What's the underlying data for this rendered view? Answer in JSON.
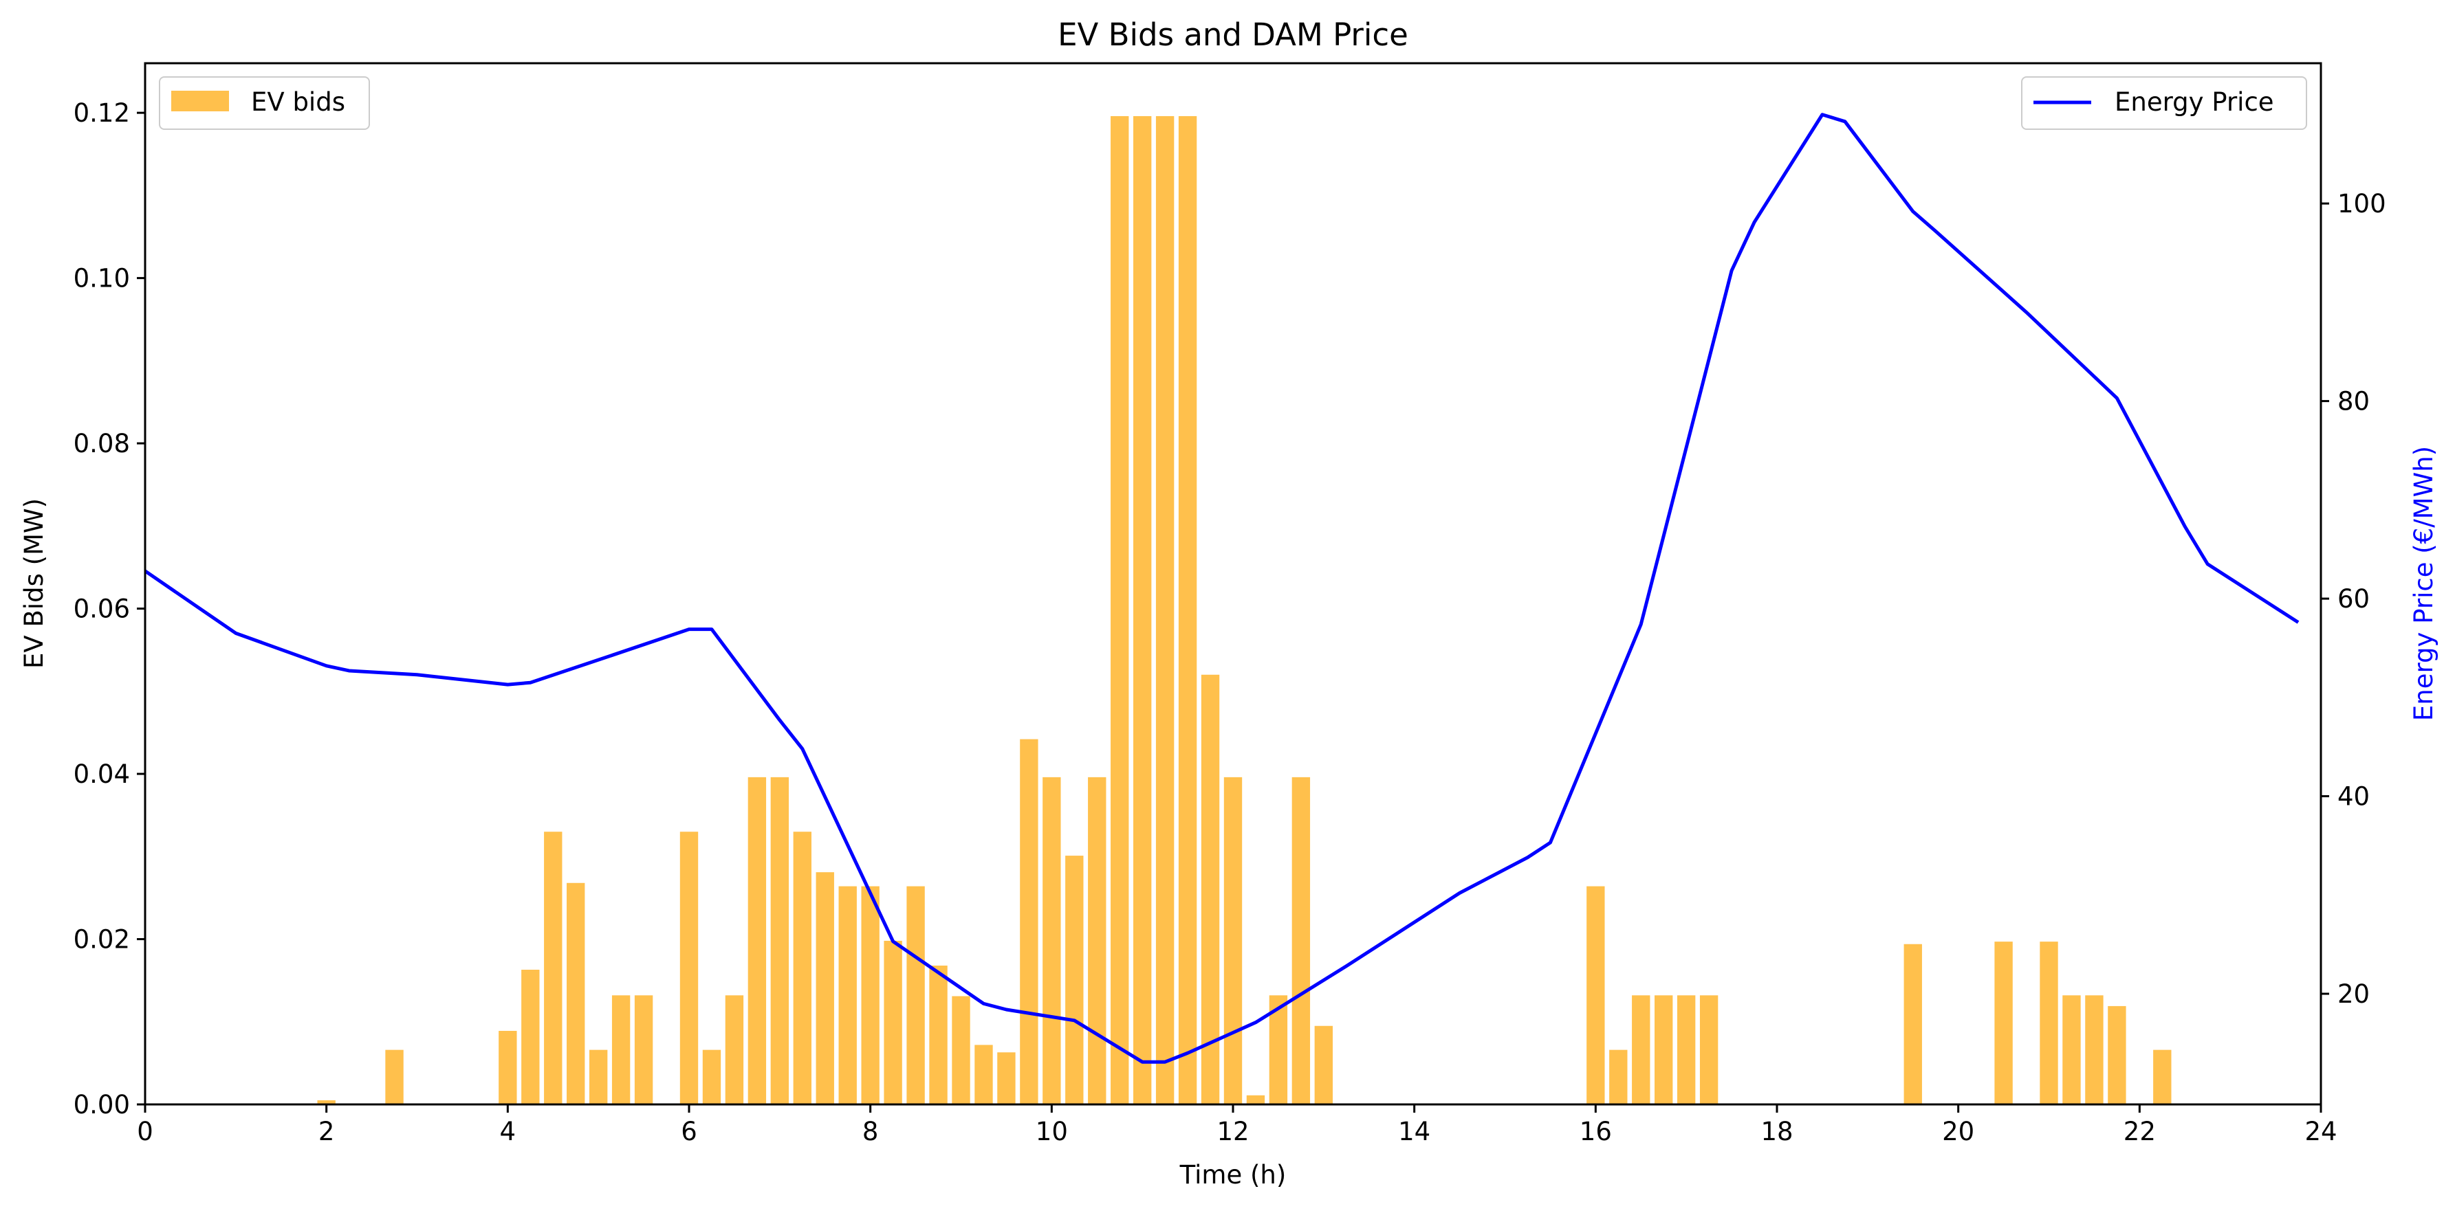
{
  "chart_data": {
    "type": "bar+line",
    "title": "EV Bids and DAM Price",
    "xlabel": "Time (h)",
    "ylabel_left": "EV Bids (MW)",
    "ylabel_right": "Energy Price (€/MWh)",
    "xlim": [
      0,
      24
    ],
    "ylim_left": [
      0,
      0.126
    ],
    "ylim_right": [
      8.8,
      114.2
    ],
    "x_ticks": [
      "0",
      "2",
      "4",
      "6",
      "8",
      "10",
      "12",
      "14",
      "16",
      "18",
      "20",
      "22",
      "24"
    ],
    "y_left_ticks": [
      "0.00",
      "0.02",
      "0.04",
      "0.06",
      "0.08",
      "0.10",
      "0.12"
    ],
    "y_right_ticks": [
      "20",
      "40",
      "60",
      "80",
      "100"
    ],
    "grid": false,
    "colors": {
      "bars": "#FFA500",
      "line": "#0000FF"
    },
    "legends": [
      {
        "label": "EV bids",
        "placement": "upper-left"
      },
      {
        "label": "Energy Price",
        "placement": "upper-right"
      }
    ],
    "bar_series": {
      "name": "EV bids",
      "bar_width_h": 0.2,
      "x": [
        2.0,
        2.75,
        4.0,
        4.25,
        4.5,
        4.75,
        5.0,
        5.25,
        5.5,
        6.0,
        6.25,
        6.5,
        6.75,
        7.0,
        7.25,
        7.5,
        7.75,
        8.0,
        8.25,
        8.5,
        8.75,
        9.0,
        9.25,
        9.5,
        9.75,
        10.0,
        10.25,
        10.5,
        10.75,
        11.0,
        11.25,
        11.5,
        11.75,
        12.0,
        12.25,
        12.5,
        12.75,
        13.0,
        16.0,
        16.25,
        16.5,
        16.75,
        17.0,
        17.25,
        19.5,
        20.5,
        21.0,
        21.25,
        21.5,
        21.75,
        22.25
      ],
      "values": [
        0.0005,
        0.0066,
        0.0089,
        0.0163,
        0.033,
        0.0268,
        0.0066,
        0.0132,
        0.0132,
        0.033,
        0.0066,
        0.0132,
        0.0396,
        0.0396,
        0.033,
        0.0281,
        0.0264,
        0.0264,
        0.0198,
        0.0264,
        0.0168,
        0.0131,
        0.0072,
        0.0063,
        0.0442,
        0.0396,
        0.0301,
        0.0396,
        0.1196,
        0.1196,
        0.1196,
        0.1196,
        0.052,
        0.0396,
        0.0011,
        0.0132,
        0.0396,
        0.0095,
        0.0264,
        0.0066,
        0.0132,
        0.0132,
        0.0132,
        0.0132,
        0.0194,
        0.0197,
        0.0197,
        0.0132,
        0.0132,
        0.0119,
        0.0066
      ]
    },
    "line_series": {
      "name": "Energy Price",
      "x": [
        0,
        1,
        2,
        2.25,
        3,
        4,
        4.25,
        5,
        6,
        6.25,
        7,
        7.25,
        8.25,
        9.25,
        9.5,
        10.25,
        11,
        11.25,
        11.5,
        12.25,
        13.25,
        14.5,
        15.25,
        15.5,
        16.5,
        17.5,
        17.75,
        18.5,
        18.75,
        19.5,
        19.75,
        20.75,
        21.75,
        22.5,
        22.75,
        23.75
      ],
      "values": [
        62.8,
        56.5,
        53.2,
        52.7,
        52.3,
        51.3,
        51.5,
        53.8,
        56.9,
        56.9,
        47.7,
        44.8,
        25.3,
        19.0,
        18.4,
        17.3,
        13.1,
        13.1,
        14.0,
        17.1,
        22.8,
        30.2,
        33.8,
        35.3,
        57.4,
        93.2,
        98.1,
        109.0,
        108.3,
        99.2,
        97.2,
        89.0,
        80.3,
        67.3,
        63.5,
        57.6
      ]
    }
  }
}
